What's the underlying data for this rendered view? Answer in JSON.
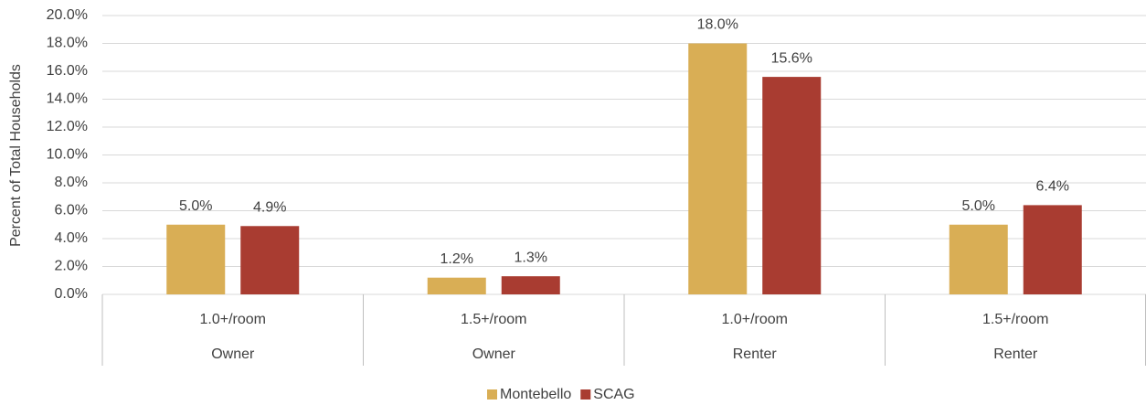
{
  "chart_data": {
    "type": "bar",
    "y_axis_label": "Percent of Total Households",
    "categories": [
      "1.0+/room",
      "1.5+/room",
      "1.0+/room",
      "1.5+/room"
    ],
    "category_groups": [
      "Owner",
      "Owner",
      "Renter",
      "Renter"
    ],
    "series": [
      {
        "name": "Montebello",
        "color": "#d9ae55",
        "values": [
          5.0,
          1.2,
          18.0,
          5.0
        ],
        "value_labels": [
          "5.0%",
          "1.2%",
          "18.0%",
          "5.0%"
        ]
      },
      {
        "name": "SCAG",
        "color": "#a93c31",
        "values": [
          4.9,
          1.3,
          15.6,
          6.4
        ],
        "value_labels": [
          "4.9%",
          "1.3%",
          "15.6%",
          "6.4%"
        ]
      }
    ],
    "ylim": [
      0,
      20
    ],
    "yticks": [
      {
        "value": 0,
        "label": "0.0%"
      },
      {
        "value": 2,
        "label": "2.0%"
      },
      {
        "value": 4,
        "label": "4.0%"
      },
      {
        "value": 6,
        "label": "6.0%"
      },
      {
        "value": 8,
        "label": "8.0%"
      },
      {
        "value": 10,
        "label": "10.0%"
      },
      {
        "value": 12,
        "label": "12.0%"
      },
      {
        "value": 14,
        "label": "14.0%"
      },
      {
        "value": 16,
        "label": "16.0%"
      },
      {
        "value": 18,
        "label": "18.0%"
      },
      {
        "value": 20,
        "label": "20.0%"
      }
    ],
    "grid": true,
    "legend": "bottom"
  }
}
